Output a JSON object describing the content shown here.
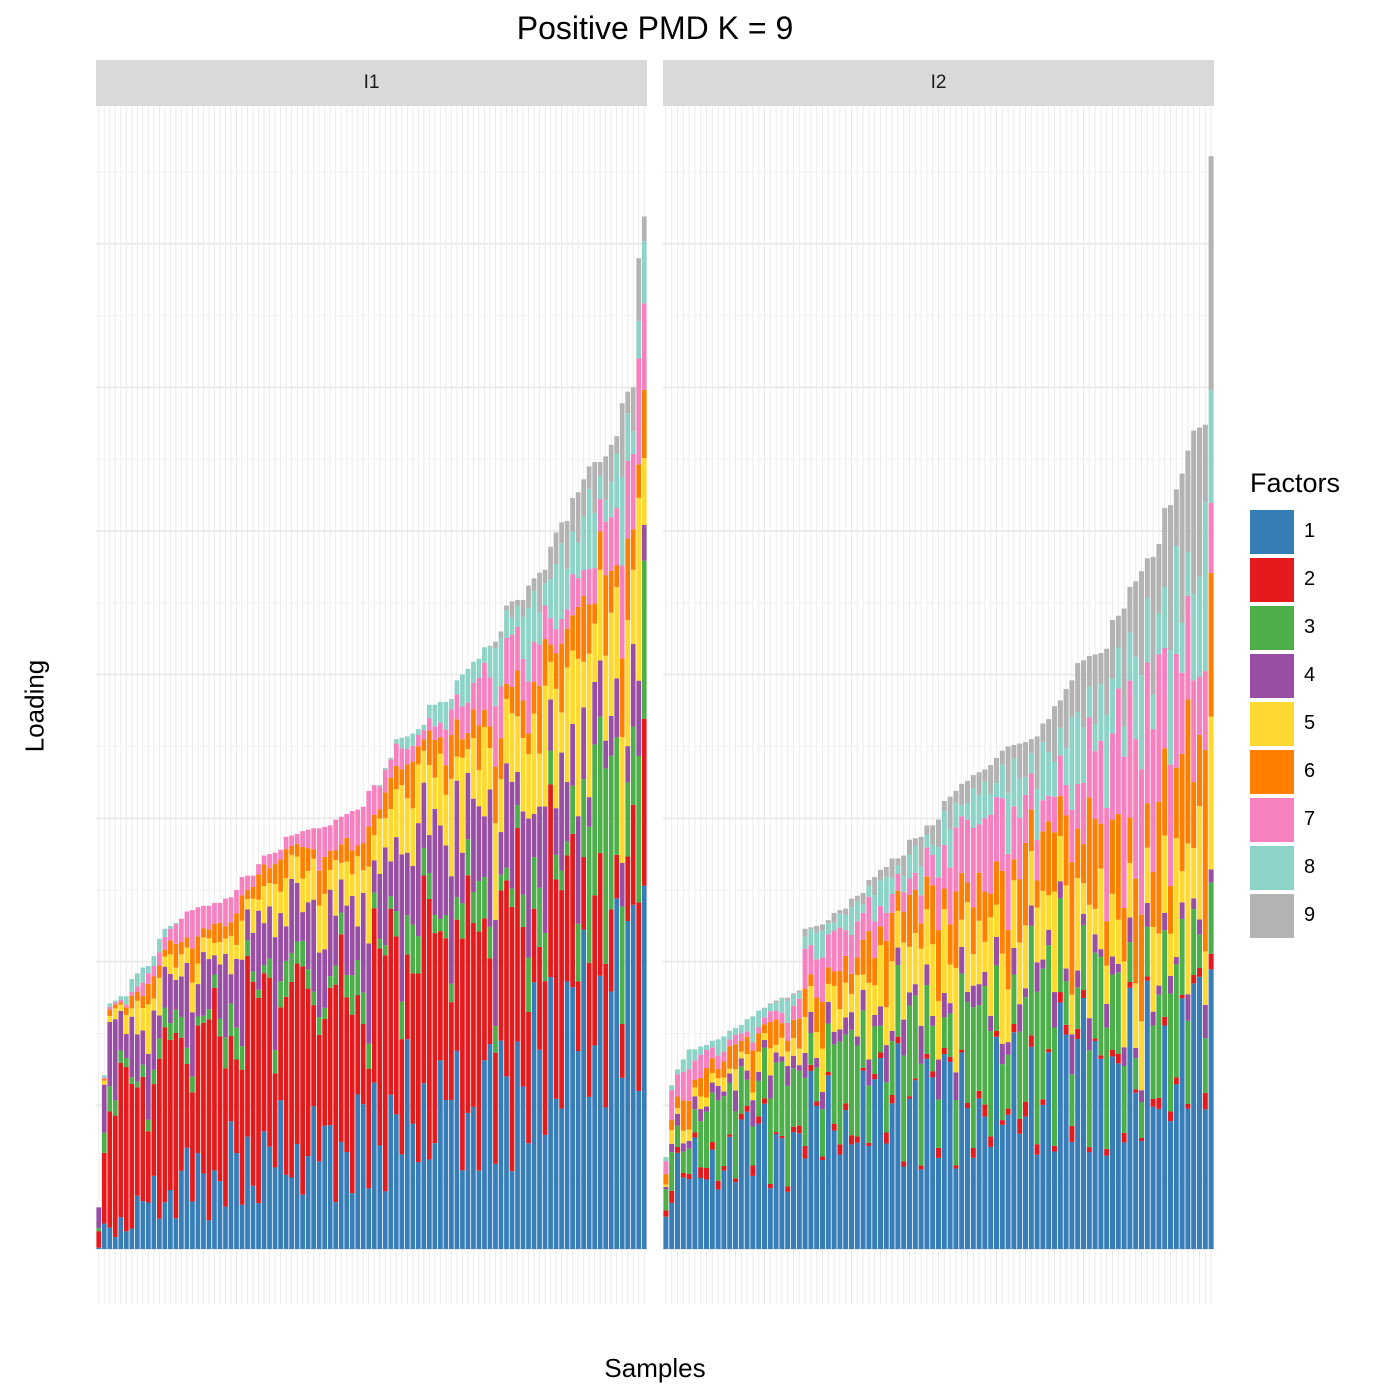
{
  "chart_data": {
    "type": "bar",
    "stacked": true,
    "title": "Positive PMD K = 9",
    "xlabel": "Samples",
    "ylabel": "Loading",
    "grid": true,
    "legend": {
      "title": "Factors",
      "position": "right",
      "entries": [
        "1",
        "2",
        "3",
        "4",
        "5",
        "6",
        "7",
        "8",
        "9"
      ]
    },
    "colors": [
      "#377eb8",
      "#e41a1c",
      "#4daf4a",
      "#984ea3",
      "#ffd92f",
      "#ff7f00",
      "#f781bf",
      "#8dd3c7",
      "#b3b3b3"
    ],
    "ylim": [
      0,
      8
    ],
    "panels": [
      {
        "label": "I1",
        "n_samples": 100,
        "totals": [
          0.29,
          1.21,
          1.71,
          1.73,
          1.76,
          1.76,
          1.88,
          1.92,
          1.96,
          1.97,
          2.04,
          2.16,
          2.23,
          2.25,
          2.27,
          2.3,
          2.35,
          2.36,
          2.38,
          2.39,
          2.39,
          2.41,
          2.41,
          2.44,
          2.45,
          2.5,
          2.59,
          2.6,
          2.6,
          2.68,
          2.74,
          2.75,
          2.76,
          2.78,
          2.87,
          2.88,
          2.89,
          2.91,
          2.92,
          2.93,
          2.93,
          2.94,
          2.95,
          2.99,
          3.01,
          3.03,
          3.05,
          3.06,
          3.08,
          3.19,
          3.23,
          3.23,
          3.35,
          3.42,
          3.55,
          3.56,
          3.57,
          3.59,
          3.62,
          3.65,
          3.79,
          3.79,
          3.81,
          3.81,
          3.83,
          3.96,
          4.0,
          4.04,
          4.09,
          4.11,
          4.19,
          4.2,
          4.23,
          4.3,
          4.48,
          4.51,
          4.52,
          4.52,
          4.62,
          4.67,
          4.71,
          4.73,
          4.89,
          4.99,
          5.06,
          5.07,
          5.23,
          5.27,
          5.36,
          5.45,
          5.48,
          5.48,
          5.52,
          5.6,
          5.66,
          5.89,
          5.97,
          6.0,
          6.9,
          7.19
        ],
        "composition": [
          [
            0.05,
            0.6,
            0.05,
            0.3,
            0,
            0,
            0,
            0,
            0
          ],
          [
            0.15,
            0.45,
            0.05,
            0.15,
            0.1,
            0.05,
            0.05,
            0.05,
            0
          ],
          [
            0.2,
            0.45,
            0.05,
            0.15,
            0.05,
            0.05,
            0.05,
            0,
            0
          ],
          [
            0.25,
            0.35,
            0.05,
            0.15,
            0.1,
            0.05,
            0.05,
            0,
            0
          ],
          [
            0.25,
            0.3,
            0.05,
            0.15,
            0.1,
            0.05,
            0.05,
            0.05,
            0
          ],
          [
            0.28,
            0.2,
            0.05,
            0.1,
            0.12,
            0.06,
            0.07,
            0.07,
            0.05
          ],
          [
            0.32,
            0.1,
            0.2,
            0.05,
            0.12,
            0.06,
            0.06,
            0.05,
            0.04
          ],
          [
            0.3,
            0.12,
            0.15,
            0.08,
            0.12,
            0.06,
            0.06,
            0.06,
            0.05
          ]
        ],
        "composition_breaks": [
          0,
          8,
          15,
          50,
          70,
          85,
          94,
          100
        ]
      },
      {
        "label": "I2",
        "n_samples": 95,
        "totals": [
          0.64,
          1.14,
          1.25,
          1.32,
          1.39,
          1.39,
          1.41,
          1.42,
          1.45,
          1.46,
          1.48,
          1.52,
          1.54,
          1.56,
          1.6,
          1.62,
          1.66,
          1.68,
          1.71,
          1.73,
          1.75,
          1.75,
          1.78,
          1.8,
          2.23,
          2.24,
          2.25,
          2.26,
          2.29,
          2.34,
          2.36,
          2.37,
          2.44,
          2.46,
          2.48,
          2.57,
          2.59,
          2.64,
          2.66,
          2.72,
          2.72,
          2.74,
          2.85,
          2.86,
          2.87,
          2.95,
          2.95,
          2.99,
          3.12,
          3.15,
          3.19,
          3.24,
          3.26,
          3.3,
          3.32,
          3.34,
          3.37,
          3.42,
          3.47,
          3.5,
          3.51,
          3.52,
          3.53,
          3.55,
          3.57,
          3.66,
          3.69,
          3.78,
          3.82,
          3.9,
          3.96,
          4.08,
          4.1,
          4.13,
          4.14,
          4.15,
          4.18,
          4.38,
          4.41,
          4.46,
          4.61,
          4.65,
          4.72,
          4.81,
          4.82,
          4.91,
          5.16,
          5.18,
          5.29,
          5.4,
          5.56,
          5.7,
          5.72,
          5.74,
          7.61
        ],
        "composition": [
          [
            0.4,
            0.05,
            0.2,
            0.05,
            0.05,
            0.1,
            0.1,
            0.05,
            0
          ],
          [
            0.45,
            0.02,
            0.25,
            0.05,
            0.05,
            0.08,
            0.05,
            0.05,
            0
          ],
          [
            0.4,
            0.02,
            0.2,
            0.05,
            0.1,
            0.08,
            0.08,
            0.05,
            0.02
          ],
          [
            0.35,
            0.01,
            0.15,
            0.05,
            0.15,
            0.1,
            0.1,
            0.05,
            0.04
          ],
          [
            0.3,
            0.02,
            0.2,
            0.04,
            0.12,
            0.1,
            0.1,
            0.07,
            0.05
          ],
          [
            0.3,
            0.01,
            0.12,
            0.03,
            0.1,
            0.12,
            0.14,
            0.09,
            0.09
          ],
          [
            0.25,
            0.01,
            0.1,
            0.02,
            0.1,
            0.12,
            0.15,
            0.1,
            0.15
          ]
        ],
        "composition_breaks": [
          0,
          15,
          30,
          45,
          60,
          75,
          88,
          95
        ]
      }
    ]
  }
}
